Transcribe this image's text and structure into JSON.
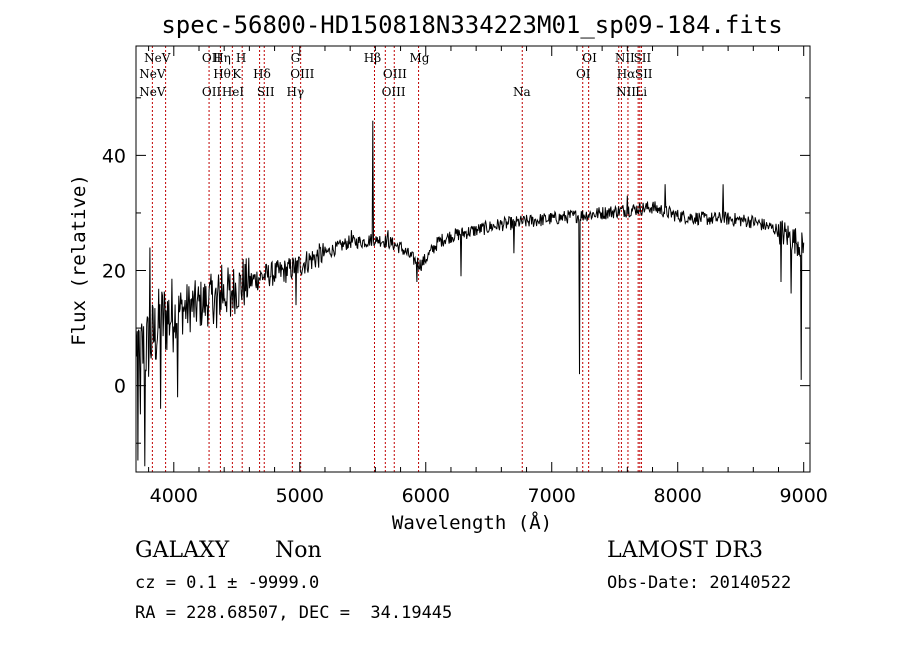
{
  "chart_data": {
    "type": "line",
    "title": "spec-56800-HD150818N334223M01_sp09-184.fits",
    "xlabel": "Wavelength (Å)",
    "ylabel": "Flux (relative)",
    "xlim": [
      3700,
      9050
    ],
    "ylim": [
      -15,
      59
    ],
    "xticks": [
      4000,
      5000,
      6000,
      7000,
      8000,
      9000
    ],
    "yticks": [
      0,
      20,
      40
    ],
    "xtick_labels": [
      "4000",
      "5000",
      "6000",
      "7000",
      "8000",
      "9000"
    ],
    "ytick_labels": [
      "0",
      "20",
      "40"
    ],
    "series": [
      {
        "name": "spectrum",
        "anchors": [
          [
            3700,
            8
          ],
          [
            3750,
            6
          ],
          [
            3800,
            7
          ],
          [
            3850,
            9
          ],
          [
            3900,
            11
          ],
          [
            3950,
            12
          ],
          [
            4000,
            12.5
          ],
          [
            4100,
            13.5
          ],
          [
            4200,
            14
          ],
          [
            4300,
            15
          ],
          [
            4400,
            16
          ],
          [
            4500,
            17
          ],
          [
            4600,
            18
          ],
          [
            4700,
            19
          ],
          [
            4800,
            19.5
          ],
          [
            4900,
            20
          ],
          [
            5000,
            21
          ],
          [
            5100,
            22
          ],
          [
            5200,
            23
          ],
          [
            5300,
            24
          ],
          [
            5400,
            25
          ],
          [
            5500,
            25
          ],
          [
            5600,
            25.5
          ],
          [
            5700,
            25
          ],
          [
            5800,
            24
          ],
          [
            5900,
            22
          ],
          [
            5960,
            21
          ],
          [
            6000,
            22
          ],
          [
            6100,
            25
          ],
          [
            6200,
            26
          ],
          [
            6400,
            27
          ],
          [
            6600,
            28
          ],
          [
            6800,
            28.5
          ],
          [
            7000,
            29
          ],
          [
            7200,
            29.5
          ],
          [
            7400,
            30
          ],
          [
            7600,
            30.5
          ],
          [
            7800,
            31
          ],
          [
            8000,
            29.5
          ],
          [
            8200,
            29
          ],
          [
            8400,
            29
          ],
          [
            8600,
            28.5
          ],
          [
            8800,
            27
          ],
          [
            8950,
            25
          ],
          [
            9000,
            24
          ]
        ],
        "features": [
          [
            3715,
            -13
          ],
          [
            3735,
            -5
          ],
          [
            3772,
            -14
          ],
          [
            3810,
            24
          ],
          [
            3895,
            -4
          ],
          [
            4030,
            -2
          ],
          [
            4340,
            10
          ],
          [
            4380,
            21
          ],
          [
            4450,
            12
          ],
          [
            4550,
            22
          ],
          [
            4970,
            14
          ],
          [
            5410,
            27
          ],
          [
            5580,
            46
          ],
          [
            5610,
            25
          ],
          [
            5700,
            27
          ],
          [
            5930,
            18
          ],
          [
            6280,
            19
          ],
          [
            6700,
            23
          ],
          [
            7220,
            2
          ],
          [
            7600,
            33
          ],
          [
            7900,
            35
          ],
          [
            8360,
            35
          ],
          [
            8820,
            18
          ],
          [
            8900,
            16
          ],
          [
            8980,
            1
          ]
        ]
      }
    ]
  },
  "lines": {
    "upper": [
      {
        "w": 3869,
        "label": "NeV"
      },
      {
        "w": 4300,
        "label": "OII"
      },
      {
        "w": 4383,
        "label": "Hη"
      },
      {
        "w": 4534,
        "label": "H"
      },
      {
        "w": 4965,
        "label": "G"
      },
      {
        "w": 5577,
        "label": "Hβ"
      },
      {
        "w": 5950,
        "label": "Mg"
      },
      {
        "w": 7300,
        "label": "OI"
      },
      {
        "w": 7580,
        "label": "NII"
      },
      {
        "w": 7720,
        "label": "SII"
      }
    ],
    "middle": [
      {
        "w": 3830,
        "label": "NeV"
      },
      {
        "w": 4383,
        "label": "Hθ"
      },
      {
        "w": 4500,
        "label": "K"
      },
      {
        "w": 4700,
        "label": "Hδ"
      },
      {
        "w": 5020,
        "label": "OIII"
      },
      {
        "w": 5755,
        "label": "OIII"
      },
      {
        "w": 7250,
        "label": "OI"
      },
      {
        "w": 7590,
        "label": "Hα"
      },
      {
        "w": 7730,
        "label": "SII"
      }
    ],
    "lower": [
      {
        "w": 3830,
        "label": "NeV"
      },
      {
        "w": 4300,
        "label": "OII"
      },
      {
        "w": 4470,
        "label": "HeI"
      },
      {
        "w": 4730,
        "label": "SII"
      },
      {
        "w": 4965,
        "label": "Hγ"
      },
      {
        "w": 5745,
        "label": "OIII"
      },
      {
        "w": 6763,
        "label": "Na"
      },
      {
        "w": 7590,
        "label": "NII"
      },
      {
        "w": 7710,
        "label": "Li"
      }
    ],
    "marker_wavelengths": [
      3830,
      3935,
      4280,
      4370,
      4465,
      4543,
      4681,
      4718,
      4941,
      5007,
      5593,
      5679,
      5750,
      5943,
      6766,
      7246,
      7293,
      7532,
      7553,
      7605,
      7686,
      7699,
      7712
    ]
  },
  "info": {
    "object_class": "GALAXY",
    "subclass": "Non",
    "survey": "LAMOST DR3",
    "cz_line": "cz = 0.1 ± -9999.0",
    "obs_date_line": "Obs-Date: 20140522",
    "coords_line": "RA = 228.68507, DEC =  34.19445"
  }
}
